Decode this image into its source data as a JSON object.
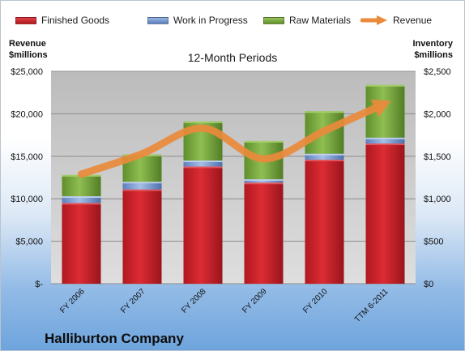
{
  "legend": [
    {
      "label": "Finished Goods",
      "color": "#c0222a",
      "kind": "bar"
    },
    {
      "label": "Work in Progress",
      "color": "#6f90c8",
      "kind": "bar"
    },
    {
      "label": "Raw Materials",
      "color": "#77a63f",
      "kind": "bar"
    },
    {
      "label": "Revenue",
      "color": "#ea8a3b",
      "kind": "arrow"
    }
  ],
  "left_axis_title": [
    "Revenue",
    "$millions"
  ],
  "right_axis_title": [
    "Inventory",
    "$millions"
  ],
  "subtitle": "12-Month Periods",
  "company": "Halliburton Company",
  "chart_data": {
    "type": "bar",
    "stacked": true,
    "categories": [
      "FY 2006",
      "FY 2007",
      "FY 2008",
      "FY 2009",
      "FY 2010",
      "TTM 6-2011"
    ],
    "series": [
      {
        "name": "Finished Goods",
        "axis": "right",
        "color": "#c0222a",
        "values": [
          950,
          1110,
          1380,
          1190,
          1460,
          1650
        ]
      },
      {
        "name": "Work in Progress",
        "axis": "right",
        "color": "#6f90c8",
        "values": [
          80,
          90,
          70,
          40,
          70,
          70
        ]
      },
      {
        "name": "Raw Materials",
        "axis": "right",
        "color": "#77a63f",
        "values": [
          250,
          320,
          460,
          450,
          500,
          620
        ]
      },
      {
        "name": "Revenue",
        "axis": "left",
        "type": "line",
        "color": "#ea8a3b",
        "values": [
          12900,
          15300,
          18300,
          14700,
          18000,
          21200
        ]
      }
    ],
    "left_axis": {
      "ylim": [
        0,
        25000
      ],
      "ticks": [
        "$-",
        "$5,000",
        "$10,000",
        "$15,000",
        "$20,000",
        "$25,000"
      ]
    },
    "right_axis": {
      "ylim": [
        0,
        2500
      ],
      "ticks": [
        "$0",
        "$500",
        "$1,000",
        "$1,500",
        "$2,000",
        "$2,500"
      ]
    },
    "grid": true,
    "legend_position": "top"
  }
}
